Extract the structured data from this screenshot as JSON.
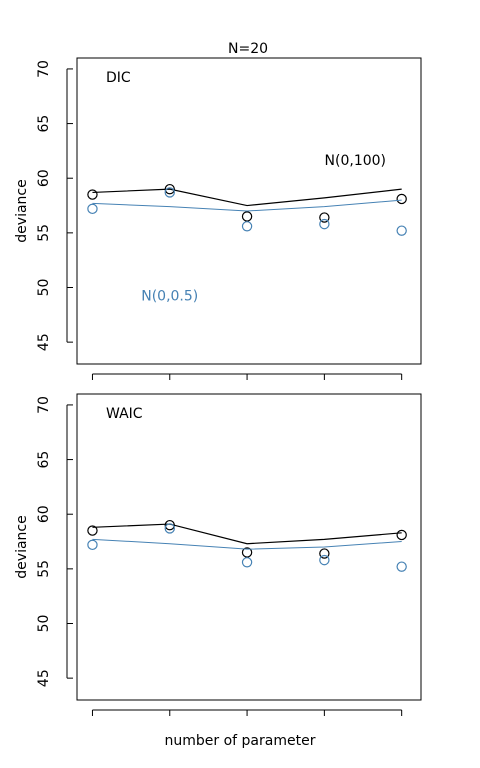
{
  "figure_title": "N=20",
  "xlabel": "number of parameter",
  "colors": {
    "flat_prior": "#000000",
    "regularizing_prior": "#4682b4"
  },
  "chart_data": [
    {
      "type": "scatter",
      "panel_label": "DIC",
      "ylabel": "deviance",
      "ylim": [
        43,
        71
      ],
      "yticks": [
        45,
        50,
        55,
        60,
        65,
        70
      ],
      "x": [
        1,
        2,
        3,
        4,
        5
      ],
      "xlim": [
        0.8,
        5.25
      ],
      "annotations": [
        {
          "text": "N(0,100)",
          "x": 4.4,
          "y": 61.2,
          "color": "#000000"
        },
        {
          "text": "N(0,0.5)",
          "x": 2.0,
          "y": 48.8,
          "color": "#4682b4"
        }
      ],
      "series": [
        {
          "color": "#000000",
          "points": [
            58.5,
            59.0,
            56.5,
            56.4,
            58.1
          ],
          "line": [
            58.7,
            59.0,
            57.5,
            58.2,
            59.0
          ]
        },
        {
          "color": "#4682b4",
          "points": [
            57.2,
            58.7,
            55.6,
            55.8,
            55.2
          ],
          "line": [
            57.7,
            57.4,
            57.0,
            57.4,
            58.0
          ]
        }
      ]
    },
    {
      "type": "scatter",
      "panel_label": "WAIC",
      "ylabel": "deviance",
      "ylim": [
        43,
        71
      ],
      "yticks": [
        45,
        50,
        55,
        60,
        65,
        70
      ],
      "x": [
        1,
        2,
        3,
        4,
        5
      ],
      "xlim": [
        0.8,
        5.25
      ],
      "annotations": [],
      "series": [
        {
          "color": "#000000",
          "points": [
            58.5,
            59.0,
            56.5,
            56.4,
            58.1
          ],
          "line": [
            58.8,
            59.1,
            57.3,
            57.7,
            58.3
          ]
        },
        {
          "color": "#4682b4",
          "points": [
            57.2,
            58.7,
            55.6,
            55.8,
            55.2
          ],
          "line": [
            57.7,
            57.3,
            56.8,
            57.0,
            57.5
          ]
        }
      ]
    }
  ]
}
